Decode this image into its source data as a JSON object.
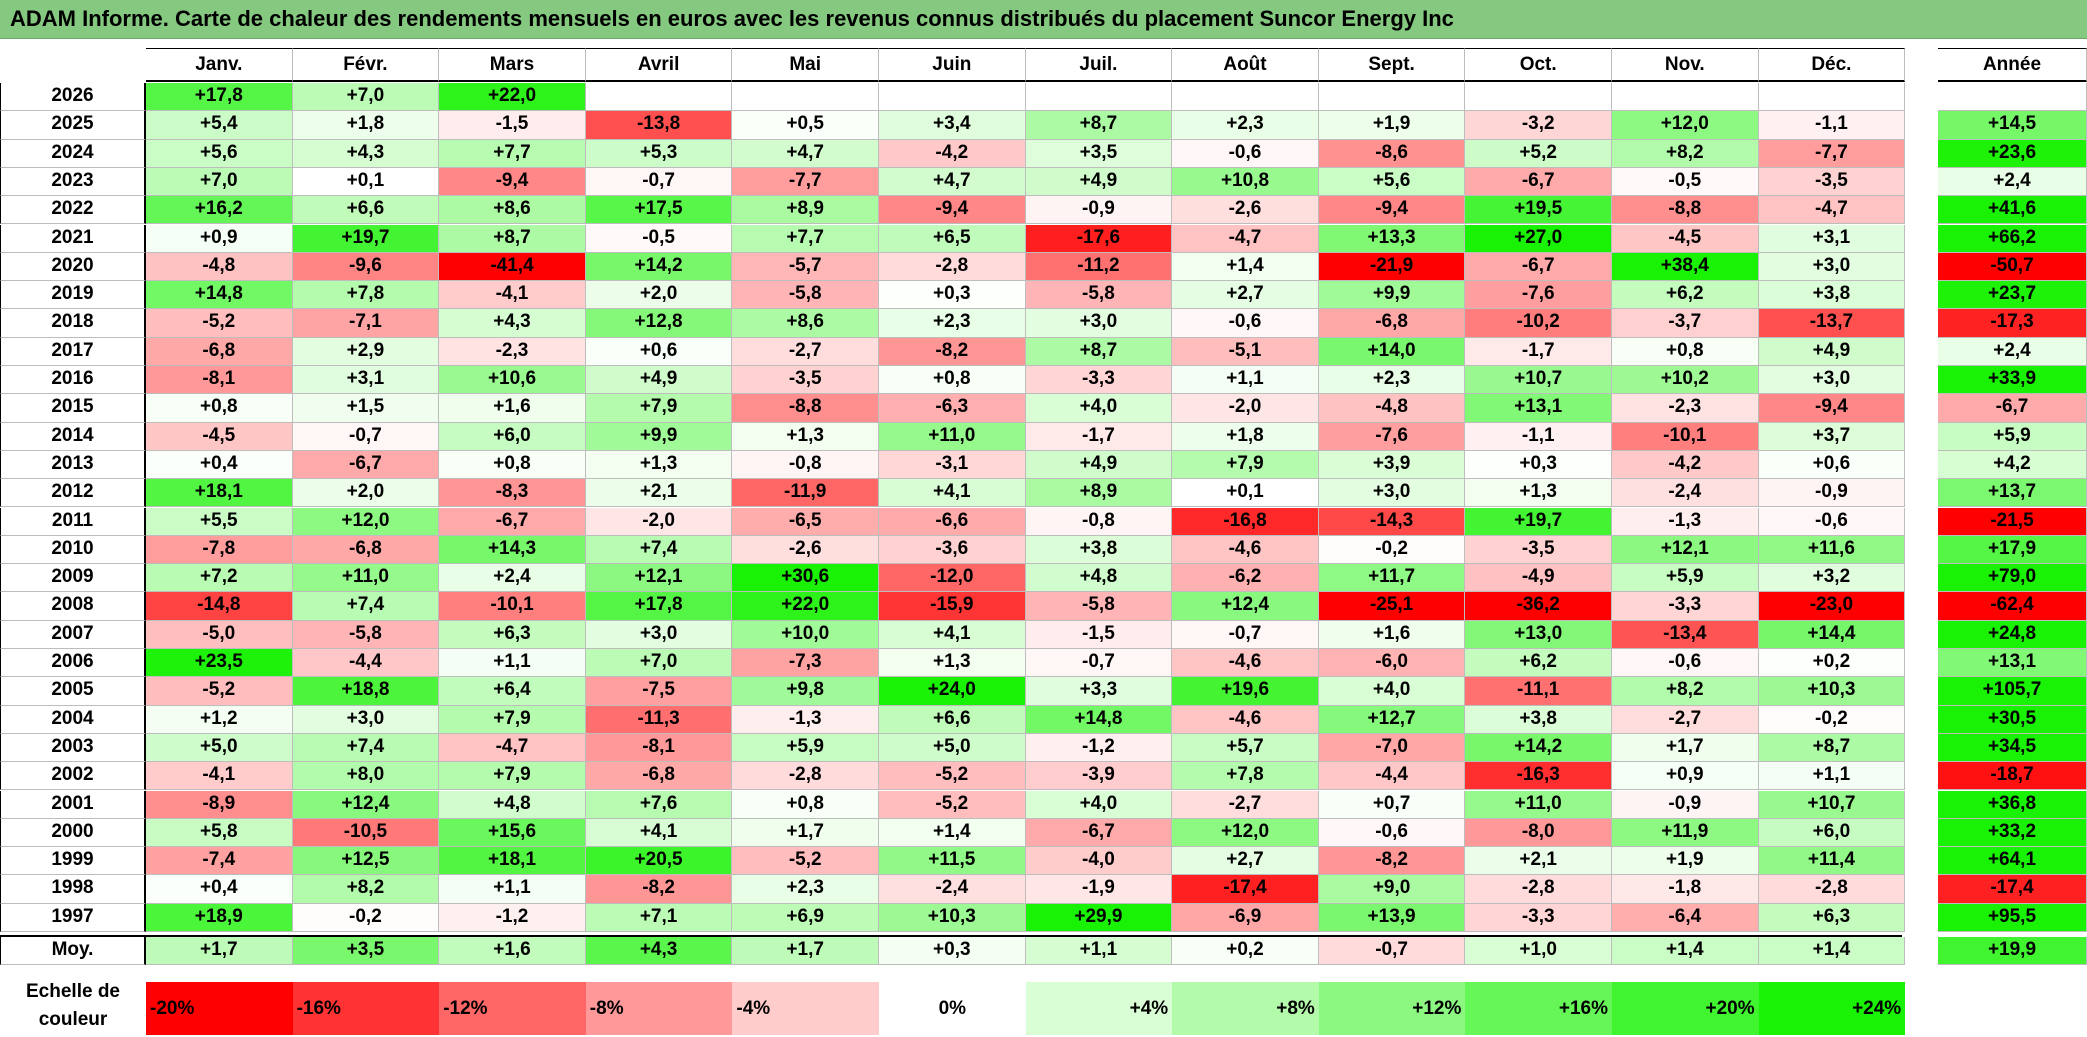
{
  "title": "ADAM Informe. Carte de chaleur des rendements mensuels en euros avec les revenus connus distribués du placement Suncor Energy Inc",
  "chart_data": {
    "type": "heatmap",
    "title": "ADAM Informe. Carte de chaleur des rendements mensuels en euros avec les revenus connus distribués du placement Suncor Energy Inc",
    "columns": [
      "Janv.",
      "Févr.",
      "Mars",
      "Avril",
      "Mai",
      "Juin",
      "Juil.",
      "Août",
      "Sept.",
      "Oct.",
      "Nov.",
      "Déc."
    ],
    "year_column_label": "Année",
    "rows": [
      {
        "year": "2026",
        "values": [
          "+17,8",
          "+7,0",
          "+22,0",
          "",
          "",
          "",
          "",
          "",
          "",
          "",
          "",
          ""
        ],
        "annual": ""
      },
      {
        "year": "2025",
        "values": [
          "+5,4",
          "+1,8",
          "-1,5",
          "-13,8",
          "+0,5",
          "+3,4",
          "+8,7",
          "+2,3",
          "+1,9",
          "-3,2",
          "+12,0",
          "-1,1"
        ],
        "annual": "+14,5"
      },
      {
        "year": "2024",
        "values": [
          "+5,6",
          "+4,3",
          "+7,7",
          "+5,3",
          "+4,7",
          "-4,2",
          "+3,5",
          "-0,6",
          "-8,6",
          "+5,2",
          "+8,2",
          "-7,7"
        ],
        "annual": "+23,6"
      },
      {
        "year": "2023",
        "values": [
          "+7,0",
          "+0,1",
          "-9,4",
          "-0,7",
          "-7,7",
          "+4,7",
          "+4,9",
          "+10,8",
          "+5,6",
          "-6,7",
          "-0,5",
          "-3,5"
        ],
        "annual": "+2,4"
      },
      {
        "year": "2022",
        "values": [
          "+16,2",
          "+6,6",
          "+8,6",
          "+17,5",
          "+8,9",
          "-9,4",
          "-0,9",
          "-2,6",
          "-9,4",
          "+19,5",
          "-8,8",
          "-4,7"
        ],
        "annual": "+41,6"
      },
      {
        "year": "2021",
        "values": [
          "+0,9",
          "+19,7",
          "+8,7",
          "-0,5",
          "+7,7",
          "+6,5",
          "-17,6",
          "-4,7",
          "+13,3",
          "+27,0",
          "-4,5",
          "+3,1"
        ],
        "annual": "+66,2"
      },
      {
        "year": "2020",
        "values": [
          "-4,8",
          "-9,6",
          "-41,4",
          "+14,2",
          "-5,7",
          "-2,8",
          "-11,2",
          "+1,4",
          "-21,9",
          "-6,7",
          "+38,4",
          "+3,0"
        ],
        "annual": "-50,7"
      },
      {
        "year": "2019",
        "values": [
          "+14,8",
          "+7,8",
          "-4,1",
          "+2,0",
          "-5,8",
          "+0,3",
          "-5,8",
          "+2,7",
          "+9,9",
          "-7,6",
          "+6,2",
          "+3,8"
        ],
        "annual": "+23,7"
      },
      {
        "year": "2018",
        "values": [
          "-5,2",
          "-7,1",
          "+4,3",
          "+12,8",
          "+8,6",
          "+2,3",
          "+3,0",
          "-0,6",
          "-6,8",
          "-10,2",
          "-3,7",
          "-13,7"
        ],
        "annual": "-17,3"
      },
      {
        "year": "2017",
        "values": [
          "-6,8",
          "+2,9",
          "-2,3",
          "+0,6",
          "-2,7",
          "-8,2",
          "+8,7",
          "-5,1",
          "+14,0",
          "-1,7",
          "+0,8",
          "+4,9"
        ],
        "annual": "+2,4"
      },
      {
        "year": "2016",
        "values": [
          "-8,1",
          "+3,1",
          "+10,6",
          "+4,9",
          "-3,5",
          "+0,8",
          "-3,3",
          "+1,1",
          "+2,3",
          "+10,7",
          "+10,2",
          "+3,0"
        ],
        "annual": "+33,9"
      },
      {
        "year": "2015",
        "values": [
          "+0,8",
          "+1,5",
          "+1,6",
          "+7,9",
          "-8,8",
          "-6,3",
          "+4,0",
          "-2,0",
          "-4,8",
          "+13,1",
          "-2,3",
          "-9,4"
        ],
        "annual": "-6,7"
      },
      {
        "year": "2014",
        "values": [
          "-4,5",
          "-0,7",
          "+6,0",
          "+9,9",
          "+1,3",
          "+11,0",
          "-1,7",
          "+1,8",
          "-7,6",
          "-1,1",
          "-10,1",
          "+3,7"
        ],
        "annual": "+5,9"
      },
      {
        "year": "2013",
        "values": [
          "+0,4",
          "-6,7",
          "+0,8",
          "+1,3",
          "-0,8",
          "-3,1",
          "+4,9",
          "+7,9",
          "+3,9",
          "+0,3",
          "-4,2",
          "+0,6"
        ],
        "annual": "+4,2"
      },
      {
        "year": "2012",
        "values": [
          "+18,1",
          "+2,0",
          "-8,3",
          "+2,1",
          "-11,9",
          "+4,1",
          "+8,9",
          "+0,1",
          "+3,0",
          "+1,3",
          "-2,4",
          "-0,9"
        ],
        "annual": "+13,7"
      },
      {
        "year": "2011",
        "values": [
          "+5,5",
          "+12,0",
          "-6,7",
          "-2,0",
          "-6,5",
          "-6,6",
          "-0,8",
          "-16,8",
          "-14,3",
          "+19,7",
          "-1,3",
          "-0,6"
        ],
        "annual": "-21,5"
      },
      {
        "year": "2010",
        "values": [
          "-7,8",
          "-6,8",
          "+14,3",
          "+7,4",
          "-2,6",
          "-3,6",
          "+3,8",
          "-4,6",
          "-0,2",
          "-3,5",
          "+12,1",
          "+11,6"
        ],
        "annual": "+17,9"
      },
      {
        "year": "2009",
        "values": [
          "+7,2",
          "+11,0",
          "+2,4",
          "+12,1",
          "+30,6",
          "-12,0",
          "+4,8",
          "-6,2",
          "+11,7",
          "-4,9",
          "+5,9",
          "+3,2"
        ],
        "annual": "+79,0"
      },
      {
        "year": "2008",
        "values": [
          "-14,8",
          "+7,4",
          "-10,1",
          "+17,8",
          "+22,0",
          "-15,9",
          "-5,8",
          "+12,4",
          "-25,1",
          "-36,2",
          "-3,3",
          "-23,0"
        ],
        "annual": "-62,4"
      },
      {
        "year": "2007",
        "values": [
          "-5,0",
          "-5,8",
          "+6,3",
          "+3,0",
          "+10,0",
          "+4,1",
          "-1,5",
          "-0,7",
          "+1,6",
          "+13,0",
          "-13,4",
          "+14,4"
        ],
        "annual": "+24,8"
      },
      {
        "year": "2006",
        "values": [
          "+23,5",
          "-4,4",
          "+1,1",
          "+7,0",
          "-7,3",
          "+1,3",
          "-0,7",
          "-4,6",
          "-6,0",
          "+6,2",
          "-0,6",
          "+0,2"
        ],
        "annual": "+13,1"
      },
      {
        "year": "2005",
        "values": [
          "-5,2",
          "+18,8",
          "+6,4",
          "-7,5",
          "+9,8",
          "+24,0",
          "+3,3",
          "+19,6",
          "+4,0",
          "-11,1",
          "+8,2",
          "+10,3"
        ],
        "annual": "+105,7"
      },
      {
        "year": "2004",
        "values": [
          "+1,2",
          "+3,0",
          "+7,9",
          "-11,3",
          "-1,3",
          "+6,6",
          "+14,8",
          "-4,6",
          "+12,7",
          "+3,8",
          "-2,7",
          "-0,2"
        ],
        "annual": "+30,5"
      },
      {
        "year": "2003",
        "values": [
          "+5,0",
          "+7,4",
          "-4,7",
          "-8,1",
          "+5,9",
          "+5,0",
          "-1,2",
          "+5,7",
          "-7,0",
          "+14,2",
          "+1,7",
          "+8,7"
        ],
        "annual": "+34,5"
      },
      {
        "year": "2002",
        "values": [
          "-4,1",
          "+8,0",
          "+7,9",
          "-6,8",
          "-2,8",
          "-5,2",
          "-3,9",
          "+7,8",
          "-4,4",
          "-16,3",
          "+0,9",
          "+1,1"
        ],
        "annual": "-18,7"
      },
      {
        "year": "2001",
        "values": [
          "-8,9",
          "+12,4",
          "+4,8",
          "+7,6",
          "+0,8",
          "-5,2",
          "+4,0",
          "-2,7",
          "+0,7",
          "+11,0",
          "-0,9",
          "+10,7"
        ],
        "annual": "+36,8"
      },
      {
        "year": "2000",
        "values": [
          "+5,8",
          "-10,5",
          "+15,6",
          "+4,1",
          "+1,7",
          "+1,4",
          "-6,7",
          "+12,0",
          "-0,6",
          "-8,0",
          "+11,9",
          "+6,0"
        ],
        "annual": "+33,2"
      },
      {
        "year": "1999",
        "values": [
          "-7,4",
          "+12,5",
          "+18,1",
          "+20,5",
          "-5,2",
          "+11,5",
          "-4,0",
          "+2,7",
          "-8,2",
          "+2,1",
          "+1,9",
          "+11,4"
        ],
        "annual": "+64,1"
      },
      {
        "year": "1998",
        "values": [
          "+0,4",
          "+8,2",
          "+1,1",
          "-8,2",
          "+2,3",
          "-2,4",
          "-1,9",
          "-17,4",
          "+9,0",
          "-2,8",
          "-1,8",
          "-2,8"
        ],
        "annual": "-17,4"
      },
      {
        "year": "1997",
        "values": [
          "+18,9",
          "-0,2",
          "-1,2",
          "+7,1",
          "+6,9",
          "+10,3",
          "+29,9",
          "-6,9",
          "+13,9",
          "-3,3",
          "-6,4",
          "+6,3"
        ],
        "annual": "+95,5"
      }
    ],
    "average_row": {
      "label": "Moy.",
      "values": [
        "+1,7",
        "+3,5",
        "+1,6",
        "+4,3",
        "+1,7",
        "+0,3",
        "+1,1",
        "+0,2",
        "-0,7",
        "+1,0",
        "+1,4",
        "+1,4"
      ],
      "annual": "+19,9"
    },
    "color_scale": {
      "label": "Echelle de couleur",
      "stops": [
        {
          "label": "-20%",
          "value": -20,
          "color": "#ff0000"
        },
        {
          "label": "-16%",
          "value": -16,
          "color": "#ff3333"
        },
        {
          "label": "-12%",
          "value": -12,
          "color": "#ff6666"
        },
        {
          "label": "-8%",
          "value": -8,
          "color": "#ff9999"
        },
        {
          "label": "-4%",
          "value": -4,
          "color": "#ffcccc"
        },
        {
          "label": "0%",
          "value": 0,
          "color": "#ffffff"
        },
        {
          "label": "+4%",
          "value": 4,
          "color": "#d9fdd4"
        },
        {
          "label": "+8%",
          "value": 8,
          "color": "#b3fbab"
        },
        {
          "label": "+12%",
          "value": 12,
          "color": "#8cf882"
        },
        {
          "label": "+16%",
          "value": 16,
          "color": "#66f658"
        },
        {
          "label": "+20%",
          "value": 20,
          "color": "#40f42f"
        },
        {
          "label": "+24%",
          "value": 24,
          "color": "#1af205"
        }
      ]
    }
  }
}
